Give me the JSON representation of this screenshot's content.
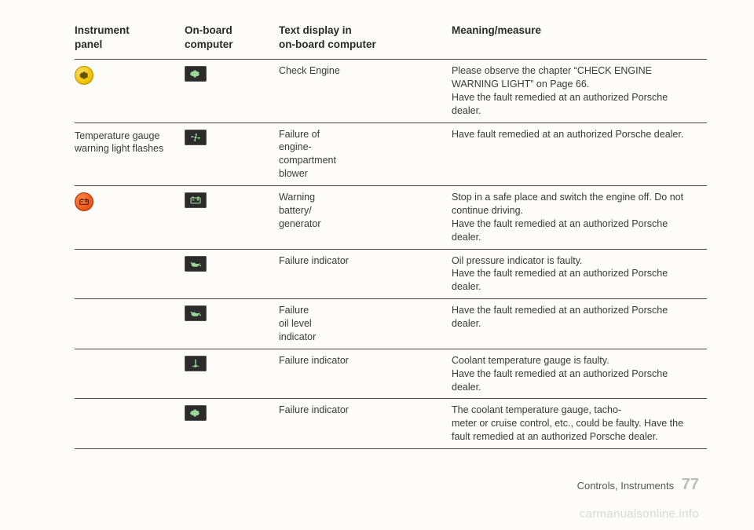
{
  "headers": {
    "panel": "Instrument\npanel",
    "computer": "On-board\ncomputer",
    "text": "Text display in\non-board computer",
    "meaning": "Meaning/measure"
  },
  "rows": [
    {
      "panel_icon": "engine-yellow",
      "panel_text": "",
      "computer_icon": "engine",
      "text": "Check Engine",
      "meaning": "Please observe the chapter “CHECK ENGINE WARNING LIGHT” on Page 66.\nHave the fault remedied at an authorized Porsche dealer."
    },
    {
      "panel_icon": "",
      "panel_text": "Temperature gauge warning light flashes",
      "computer_icon": "fan",
      "text": "Failure of\nengine-\ncompartment\nblower",
      "meaning": "Have fault remedied at an authorized Porsche dealer."
    },
    {
      "panel_icon": "battery-orange",
      "panel_text": "",
      "computer_icon": "battery",
      "text": "Warning\nbattery/\ngenerator",
      "meaning": "Stop in a safe place and switch the engine off. Do not continue driving.\nHave the fault remedied at an authorized Porsche dealer."
    },
    {
      "panel_icon": "",
      "panel_text": "",
      "computer_icon": "oilcan",
      "text": "Failure indicator",
      "meaning": "Oil pressure indicator is faulty.\nHave the fault remedied at an authorized Porsche dealer."
    },
    {
      "panel_icon": "",
      "panel_text": "",
      "computer_icon": "oilcan",
      "text": "Failure\noil level\nindicator",
      "meaning": "Have the fault remedied at an authorized Porsche dealer."
    },
    {
      "panel_icon": "",
      "panel_text": "",
      "computer_icon": "temp",
      "text": "Failure indicator",
      "meaning": "Coolant temperature gauge is faulty.\nHave the fault remedied at an authorized Porsche dealer."
    },
    {
      "panel_icon": "",
      "panel_text": "",
      "computer_icon": "engine",
      "text": "Failure indicator",
      "meaning": "The coolant temperature gauge, tacho-\nmeter or cruise control, etc., could be faulty. Have the fault remedied at an authorized Porsche dealer."
    }
  ],
  "footer_text": "Controls, Instruments",
  "page_number": "77",
  "watermark": "carmanualsonline.info"
}
